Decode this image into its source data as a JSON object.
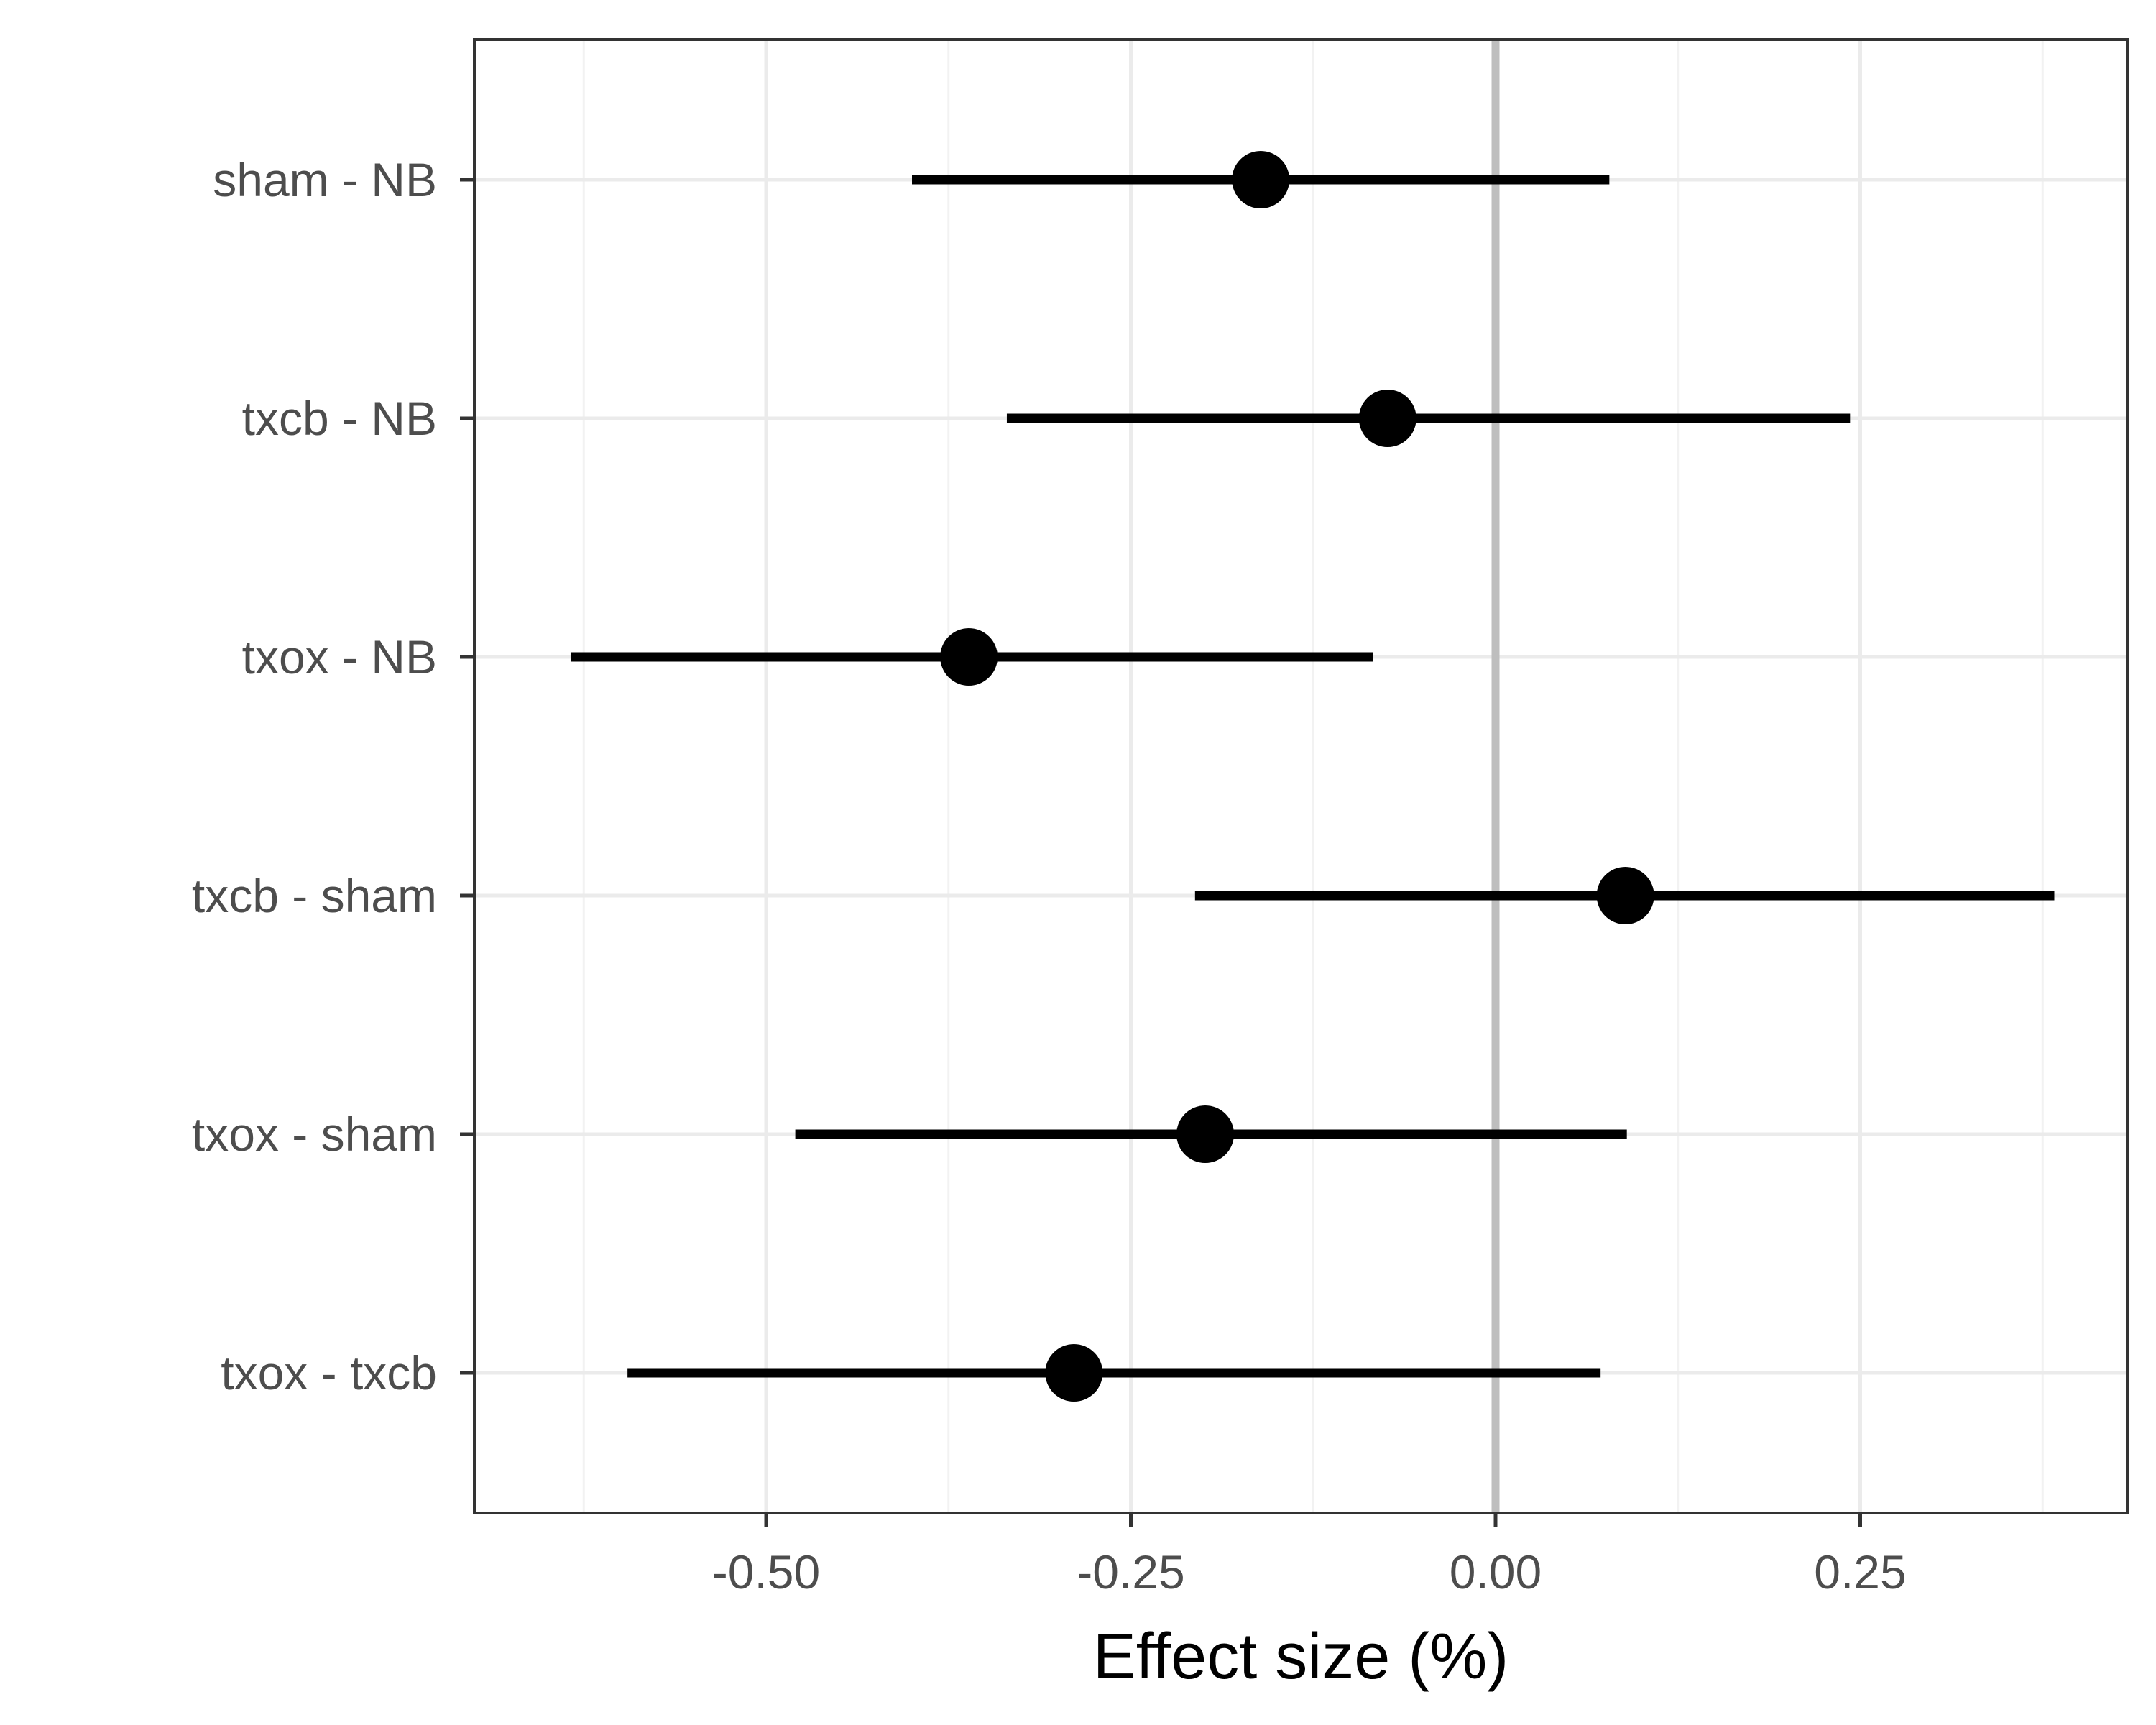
{
  "chart_data": {
    "type": "forest",
    "title": "",
    "xlabel": "Effect size (%)",
    "ylabel": "",
    "xlim": [
      -0.7,
      0.433
    ],
    "x_ticks": [
      -0.5,
      -0.25,
      0.0,
      0.25
    ],
    "x_tick_labels": [
      "-0.50",
      "-0.25",
      "0.00",
      "0.25"
    ],
    "x_minor_ticks": [
      -0.625,
      -0.375,
      -0.125,
      0.125,
      0.375
    ],
    "reference_line": 0,
    "grid": true,
    "categories": [
      "sham - NB",
      "txcb - NB",
      "txox - NB",
      "txcb - sham",
      "txox - sham",
      "txox - txcb"
    ],
    "estimates": [
      -0.161,
      -0.074,
      -0.361,
      0.089,
      -0.199,
      -0.289
    ],
    "lower": [
      -0.4,
      -0.335,
      -0.634,
      -0.206,
      -0.48,
      -0.595
    ],
    "upper": [
      0.078,
      0.243,
      -0.084,
      0.383,
      0.09,
      0.072
    ],
    "colors": {
      "panel_border": "#333333",
      "grid_major": "#ebebeb",
      "grid_minor": "#f2f2f2",
      "reference": "#bebebe",
      "marks": "#000000",
      "tick": "#333333"
    }
  }
}
